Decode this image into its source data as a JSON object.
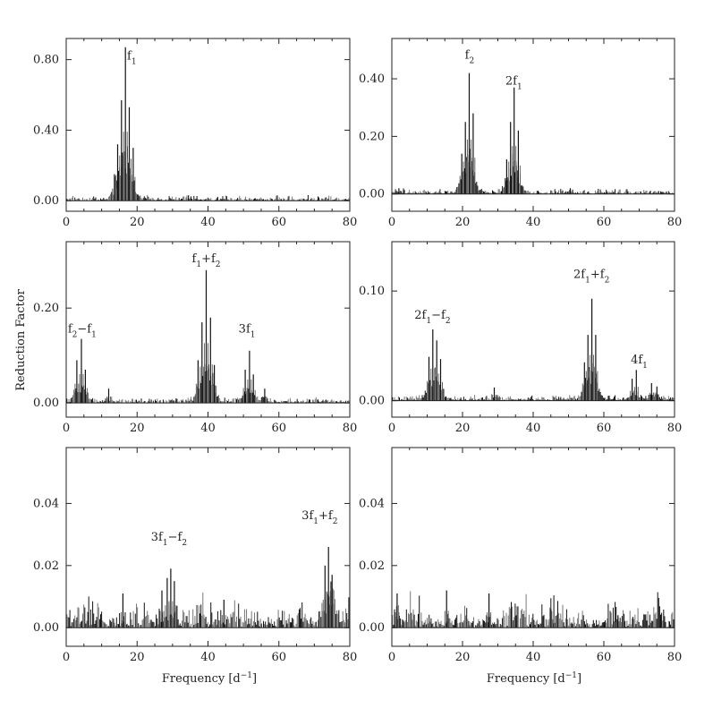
{
  "figure": {
    "ylabel": "Reduction Factor",
    "xlabel": "Frequency [d",
    "xlabel_sup": "−1",
    "xlabel_close": "]"
  },
  "chart_data": [
    {
      "type": "line",
      "panel": "top-left",
      "xlim": [
        0,
        80
      ],
      "ylim": [
        -0.06,
        0.92
      ],
      "xticks": [
        0,
        20,
        40,
        60,
        80
      ],
      "yticks": [
        0.0,
        0.4,
        0.8
      ],
      "ytick_labels": [
        "0.00",
        "0.40",
        "0.80"
      ],
      "peaks": [
        {
          "x": 14.5,
          "y": 0.32
        },
        {
          "x": 15.6,
          "y": 0.57
        },
        {
          "x": 16.7,
          "y": 0.87
        },
        {
          "x": 17.8,
          "y": 0.53
        },
        {
          "x": 18.9,
          "y": 0.3
        },
        {
          "x": 13.6,
          "y": 0.15
        },
        {
          "x": 34.5,
          "y": 0.03
        }
      ],
      "labels": [
        {
          "x": 18.5,
          "y": 0.8,
          "text": "f",
          "sub": "1"
        }
      ]
    },
    {
      "type": "line",
      "panel": "top-right",
      "xlim": [
        0,
        80
      ],
      "ylim": [
        -0.06,
        0.54
      ],
      "xticks": [
        0,
        20,
        40,
        60,
        80
      ],
      "yticks": [
        0.0,
        0.2,
        0.4
      ],
      "ytick_labels": [
        "0.00",
        "0.20",
        "0.40"
      ],
      "peaks": [
        {
          "x": 20.8,
          "y": 0.25
        },
        {
          "x": 21.9,
          "y": 0.42
        },
        {
          "x": 23.0,
          "y": 0.28
        },
        {
          "x": 19.8,
          "y": 0.14
        },
        {
          "x": 33.6,
          "y": 0.25
        },
        {
          "x": 34.6,
          "y": 0.37
        },
        {
          "x": 35.8,
          "y": 0.22
        },
        {
          "x": 32.5,
          "y": 0.12
        },
        {
          "x": 2.0,
          "y": 0.02
        },
        {
          "x": 50.5,
          "y": 0.02
        }
      ],
      "labels": [
        {
          "x": 22.0,
          "y": 0.47,
          "text": "f",
          "sub": "2"
        },
        {
          "x": 34.5,
          "y": 0.38,
          "text": "2f",
          "sub": "1"
        }
      ]
    },
    {
      "type": "line",
      "panel": "middle-left",
      "xlim": [
        0,
        80
      ],
      "ylim": [
        -0.03,
        0.34
      ],
      "xticks": [
        0,
        20,
        40,
        60,
        80
      ],
      "yticks": [
        0.0,
        0.2
      ],
      "ytick_labels": [
        "0.00",
        "0.20"
      ],
      "peaks": [
        {
          "x": 3.0,
          "y": 0.09
        },
        {
          "x": 4.3,
          "y": 0.135
        },
        {
          "x": 5.4,
          "y": 0.07
        },
        {
          "x": 12.0,
          "y": 0.03
        },
        {
          "x": 38.3,
          "y": 0.17
        },
        {
          "x": 39.5,
          "y": 0.28
        },
        {
          "x": 40.7,
          "y": 0.18
        },
        {
          "x": 41.8,
          "y": 0.08
        },
        {
          "x": 37.2,
          "y": 0.09
        },
        {
          "x": 50.5,
          "y": 0.07
        },
        {
          "x": 51.7,
          "y": 0.11
        },
        {
          "x": 52.8,
          "y": 0.06
        },
        {
          "x": 56.0,
          "y": 0.03
        }
      ],
      "labels": [
        {
          "x": 4.5,
          "y": 0.148,
          "text": "f",
          "sub": "2",
          "text2": "−f",
          "sub2": "1"
        },
        {
          "x": 39.5,
          "y": 0.297,
          "text": "f",
          "sub": "1",
          "text2": "+f",
          "sub2": "2"
        },
        {
          "x": 51.0,
          "y": 0.148,
          "text": "3f",
          "sub": "1"
        }
      ]
    },
    {
      "type": "line",
      "panel": "middle-right",
      "xlim": [
        0,
        80
      ],
      "ylim": [
        -0.015,
        0.145
      ],
      "xticks": [
        0,
        20,
        40,
        60,
        80
      ],
      "yticks": [
        0.0,
        0.1
      ],
      "ytick_labels": [
        "0.00",
        "0.10"
      ],
      "peaks": [
        {
          "x": 10.5,
          "y": 0.04
        },
        {
          "x": 11.6,
          "y": 0.065
        },
        {
          "x": 12.7,
          "y": 0.055
        },
        {
          "x": 13.8,
          "y": 0.038
        },
        {
          "x": 29.0,
          "y": 0.012
        },
        {
          "x": 55.5,
          "y": 0.06
        },
        {
          "x": 56.6,
          "y": 0.093
        },
        {
          "x": 57.7,
          "y": 0.06
        },
        {
          "x": 54.5,
          "y": 0.035
        },
        {
          "x": 68.0,
          "y": 0.02
        },
        {
          "x": 69.2,
          "y": 0.028
        },
        {
          "x": 73.5,
          "y": 0.016
        },
        {
          "x": 75.0,
          "y": 0.013
        }
      ],
      "labels": [
        {
          "x": 11.5,
          "y": 0.075,
          "text": "2f",
          "sub": "1",
          "text2": "−f",
          "sub2": "2"
        },
        {
          "x": 56.5,
          "y": 0.112,
          "text": "2f",
          "sub": "1",
          "text2": "+f",
          "sub2": "2"
        },
        {
          "x": 70.0,
          "y": 0.034,
          "text": "4f",
          "sub": "1"
        }
      ]
    },
    {
      "type": "line",
      "panel": "bottom-left",
      "xlim": [
        0,
        80
      ],
      "ylim": [
        -0.006,
        0.058
      ],
      "xticks": [
        0,
        20,
        40,
        60,
        80
      ],
      "xlabel": true,
      "yticks": [
        0.0,
        0.02,
        0.04
      ],
      "ytick_labels": [
        "0.00",
        "0.02",
        "0.04"
      ],
      "peaks": [
        {
          "x": 28.5,
          "y": 0.016
        },
        {
          "x": 29.5,
          "y": 0.019
        },
        {
          "x": 30.5,
          "y": 0.015
        },
        {
          "x": 27.0,
          "y": 0.012
        },
        {
          "x": 73.0,
          "y": 0.02
        },
        {
          "x": 74.0,
          "y": 0.026
        },
        {
          "x": 75.0,
          "y": 0.017
        },
        {
          "x": 44.5,
          "y": 0.009
        },
        {
          "x": 16.0,
          "y": 0.011
        }
      ],
      "labels": [
        {
          "x": 29.0,
          "y": 0.028,
          "text": "3f",
          "sub": "1",
          "text2": "−f",
          "sub2": "2"
        },
        {
          "x": 71.5,
          "y": 0.035,
          "text": "3f",
          "sub": "1",
          "text2": "+f",
          "sub2": "2"
        }
      ]
    },
    {
      "type": "line",
      "panel": "bottom-right",
      "xlim": [
        0,
        80
      ],
      "ylim": [
        -0.006,
        0.058
      ],
      "xticks": [
        0,
        20,
        40,
        60,
        80
      ],
      "xlabel": true,
      "yticks": [
        0.0,
        0.02,
        0.04
      ],
      "ytick_labels": [
        "0.00",
        "0.02",
        "0.04"
      ],
      "peaks": [
        {
          "x": 1.5,
          "y": 0.011
        },
        {
          "x": 15.5,
          "y": 0.012
        },
        {
          "x": 27.5,
          "y": 0.011
        },
        {
          "x": 45.0,
          "y": 0.006
        },
        {
          "x": 64.0,
          "y": 0.004
        }
      ],
      "labels": []
    }
  ]
}
